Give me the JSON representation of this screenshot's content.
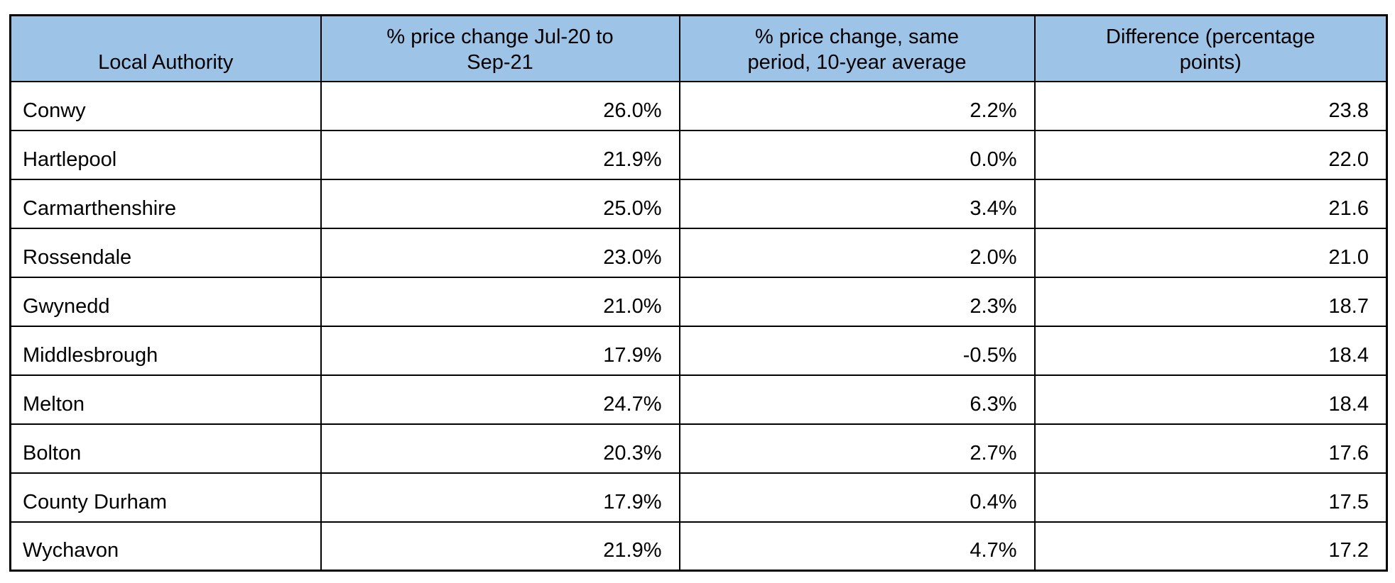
{
  "colors": {
    "header_bg": "#9DC3E6",
    "border": "#000000",
    "text": "#000000",
    "page_bg": "#FFFFFF"
  },
  "table": {
    "headers": [
      {
        "lines": [
          "Local Authority",
          ""
        ]
      },
      {
        "lines": [
          "% price change Jul-20 to",
          "Sep-21"
        ]
      },
      {
        "lines": [
          "% price change, same",
          "period, 10-year average"
        ]
      },
      {
        "lines": [
          "Difference (percentage",
          "points)"
        ]
      }
    ],
    "rows": [
      {
        "la": "Conwy",
        "change": "26.0%",
        "avg": "2.2%",
        "diff": "23.8"
      },
      {
        "la": "Hartlepool",
        "change": "21.9%",
        "avg": "0.0%",
        "diff": "22.0"
      },
      {
        "la": "Carmarthenshire",
        "change": "25.0%",
        "avg": "3.4%",
        "diff": "21.6"
      },
      {
        "la": "Rossendale",
        "change": "23.0%",
        "avg": "2.0%",
        "diff": "21.0"
      },
      {
        "la": "Gwynedd",
        "change": "21.0%",
        "avg": "2.3%",
        "diff": "18.7"
      },
      {
        "la": "Middlesbrough",
        "change": "17.9%",
        "avg": "-0.5%",
        "diff": "18.4"
      },
      {
        "la": "Melton",
        "change": "24.7%",
        "avg": "6.3%",
        "diff": "18.4"
      },
      {
        "la": "Bolton",
        "change": "20.3%",
        "avg": "2.7%",
        "diff": "17.6"
      },
      {
        "la": "County Durham",
        "change": "17.9%",
        "avg": "0.4%",
        "diff": "17.5"
      },
      {
        "la": "Wychavon",
        "change": "21.9%",
        "avg": "4.7%",
        "diff": "17.2"
      }
    ]
  },
  "chart_data": {
    "type": "table",
    "columns": [
      "Local Authority",
      "% price change Jul-20 to Sep-21",
      "% price change, same period, 10-year average",
      "Difference (percentage points)"
    ],
    "rows": [
      [
        "Conwy",
        "26.0%",
        "2.2%",
        "23.8"
      ],
      [
        "Hartlepool",
        "21.9%",
        "0.0%",
        "22.0"
      ],
      [
        "Carmarthenshire",
        "25.0%",
        "3.4%",
        "21.6"
      ],
      [
        "Rossendale",
        "23.0%",
        "2.0%",
        "21.0"
      ],
      [
        "Gwynedd",
        "21.0%",
        "2.3%",
        "18.7"
      ],
      [
        "Middlesbrough",
        "17.9%",
        "-0.5%",
        "18.4"
      ],
      [
        "Melton",
        "24.7%",
        "6.3%",
        "18.4"
      ],
      [
        "Bolton",
        "20.3%",
        "2.7%",
        "17.6"
      ],
      [
        "County Durham",
        "17.9%",
        "0.4%",
        "17.5"
      ],
      [
        "Wychavon",
        "21.9%",
        "4.7%",
        "17.2"
      ]
    ],
    "numeric": {
      "categories": [
        "Conwy",
        "Hartlepool",
        "Carmarthenshire",
        "Rossendale",
        "Gwynedd",
        "Middlesbrough",
        "Melton",
        "Bolton",
        "County Durham",
        "Wychavon"
      ],
      "series": [
        {
          "name": "% price change Jul-20 to Sep-21",
          "values": [
            26.0,
            21.9,
            25.0,
            23.0,
            21.0,
            17.9,
            24.7,
            20.3,
            17.9,
            21.9
          ]
        },
        {
          "name": "% price change, same period, 10-year average",
          "values": [
            2.2,
            0.0,
            3.4,
            2.0,
            2.3,
            -0.5,
            6.3,
            2.7,
            0.4,
            4.7
          ]
        },
        {
          "name": "Difference (percentage points)",
          "values": [
            23.8,
            22.0,
            21.6,
            21.0,
            18.7,
            18.4,
            18.4,
            17.6,
            17.5,
            17.2
          ]
        }
      ]
    }
  }
}
